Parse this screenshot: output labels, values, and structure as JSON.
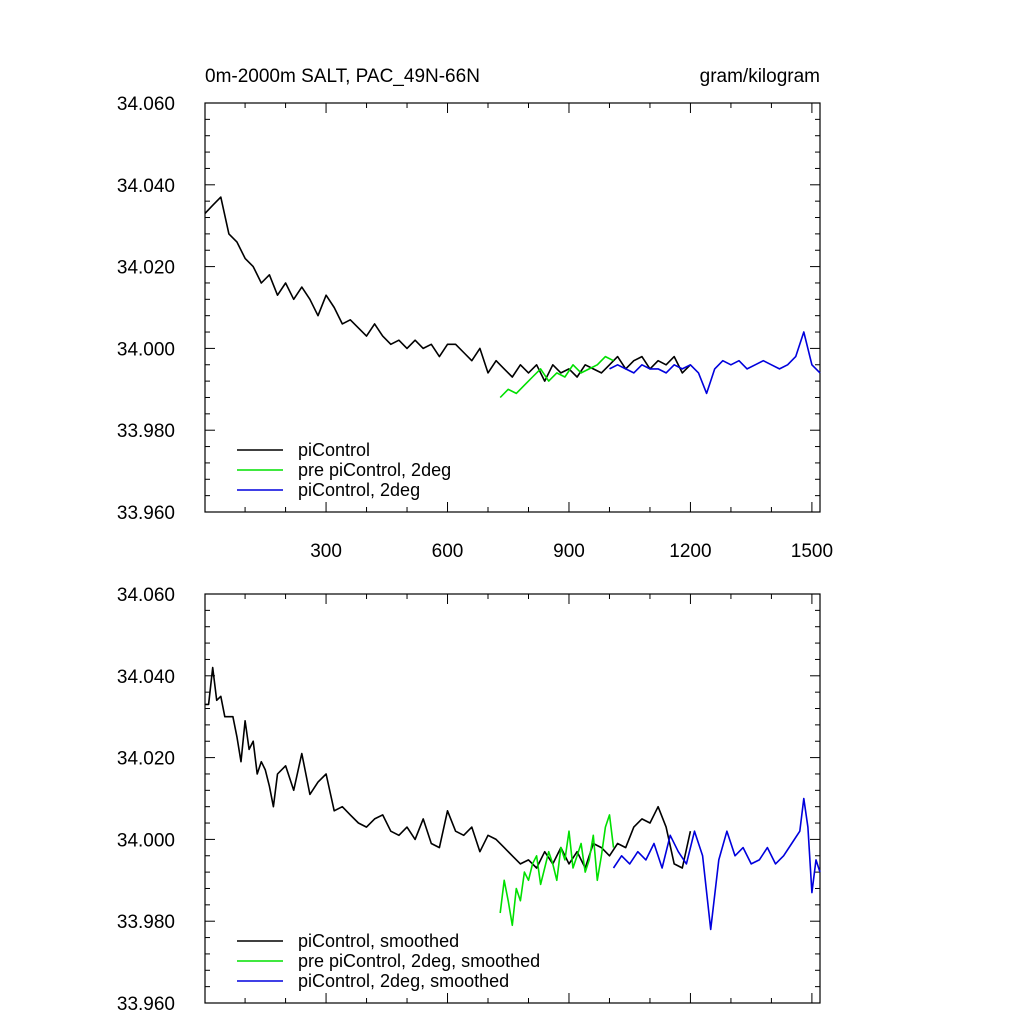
{
  "figure": {
    "title_left": "0m-2000m SALT, PAC_49N-66N",
    "title_right": "gram/kilogram"
  },
  "colors": {
    "piControl": "#000000",
    "pre_piControl_2deg": "#00e000",
    "piControl_2deg": "#0000dd"
  },
  "chart_data": [
    {
      "type": "line",
      "panel": "top",
      "xlim": [
        1,
        1520
      ],
      "ylim": [
        33.96,
        34.06
      ],
      "grid": false,
      "legend_position": "bottom-left",
      "xticks": [
        300,
        600,
        900,
        1200,
        1500
      ],
      "xtick_labels": [
        "300",
        "600",
        "900",
        "1200",
        "1500"
      ],
      "yticks": [
        33.96,
        33.98,
        34.0,
        34.02,
        34.04,
        34.06
      ],
      "ytick_labels": [
        "33.960",
        "33.980",
        "34.000",
        "34.020",
        "34.040",
        "34.060"
      ],
      "series": [
        {
          "name": "piControl",
          "color": "#000000",
          "x": [
            1,
            20,
            40,
            60,
            80,
            100,
            120,
            140,
            160,
            180,
            200,
            220,
            240,
            260,
            280,
            300,
            320,
            340,
            360,
            380,
            400,
            420,
            440,
            460,
            480,
            500,
            520,
            540,
            560,
            580,
            600,
            620,
            640,
            660,
            680,
            700,
            720,
            740,
            760,
            780,
            800,
            820,
            840,
            860,
            880,
            900,
            920,
            940,
            960,
            980,
            1000,
            1020,
            1040,
            1060,
            1080,
            1100,
            1120,
            1140,
            1160,
            1180,
            1200
          ],
          "y": [
            34.033,
            34.035,
            34.037,
            34.028,
            34.026,
            34.022,
            34.02,
            34.016,
            34.018,
            34.013,
            34.016,
            34.012,
            34.015,
            34.012,
            34.008,
            34.013,
            34.01,
            34.006,
            34.007,
            34.005,
            34.003,
            34.006,
            34.003,
            34.001,
            34.002,
            34.0,
            34.002,
            34.0,
            34.001,
            33.998,
            34.001,
            34.001,
            33.999,
            33.997,
            34.0,
            33.994,
            33.997,
            33.995,
            33.993,
            33.996,
            33.994,
            33.996,
            33.992,
            33.996,
            33.994,
            33.995,
            33.993,
            33.996,
            33.995,
            33.994,
            33.996,
            33.998,
            33.995,
            33.997,
            33.998,
            33.995,
            33.997,
            33.996,
            33.998,
            33.994,
            33.996
          ]
        },
        {
          "name": "pre piControl, 2deg",
          "color": "#00e000",
          "x": [
            730,
            750,
            770,
            790,
            810,
            830,
            850,
            870,
            890,
            910,
            930,
            950,
            970,
            990,
            1010
          ],
          "y": [
            33.988,
            33.99,
            33.989,
            33.991,
            33.993,
            33.995,
            33.992,
            33.994,
            33.993,
            33.996,
            33.994,
            33.995,
            33.996,
            33.998,
            33.997
          ]
        },
        {
          "name": "piControl, 2deg",
          "color": "#0000dd",
          "x": [
            1000,
            1020,
            1040,
            1060,
            1080,
            1100,
            1120,
            1140,
            1160,
            1180,
            1200,
            1220,
            1240,
            1260,
            1280,
            1300,
            1320,
            1340,
            1360,
            1380,
            1400,
            1420,
            1440,
            1460,
            1480,
            1500,
            1520
          ],
          "y": [
            33.995,
            33.996,
            33.995,
            33.994,
            33.996,
            33.995,
            33.995,
            33.994,
            33.996,
            33.995,
            33.996,
            33.994,
            33.989,
            33.995,
            33.997,
            33.996,
            33.997,
            33.995,
            33.996,
            33.997,
            33.996,
            33.995,
            33.996,
            33.998,
            34.004,
            33.996,
            33.994
          ]
        }
      ]
    },
    {
      "type": "line",
      "panel": "bottom",
      "xlim": [
        1,
        1520
      ],
      "ylim": [
        33.96,
        34.06
      ],
      "grid": false,
      "legend_position": "bottom-left",
      "xticks": [
        300,
        600,
        900,
        1200,
        1500
      ],
      "xtick_labels": [],
      "yticks": [
        33.96,
        33.98,
        34.0,
        34.02,
        34.04,
        34.06
      ],
      "ytick_labels": [
        "33.960",
        "33.980",
        "34.000",
        "34.020",
        "34.040",
        "34.060"
      ],
      "series": [
        {
          "name": "piControl, smoothed",
          "color": "#000000",
          "x": [
            1,
            10,
            20,
            30,
            40,
            50,
            60,
            70,
            80,
            90,
            100,
            110,
            120,
            130,
            140,
            150,
            160,
            170,
            180,
            200,
            220,
            240,
            260,
            280,
            300,
            320,
            340,
            360,
            380,
            400,
            420,
            440,
            460,
            480,
            500,
            520,
            540,
            560,
            580,
            600,
            620,
            640,
            660,
            680,
            700,
            720,
            740,
            760,
            780,
            800,
            820,
            840,
            860,
            880,
            900,
            920,
            940,
            960,
            980,
            1000,
            1020,
            1040,
            1060,
            1080,
            1100,
            1120,
            1140,
            1160,
            1180,
            1200
          ],
          "y": [
            34.033,
            34.033,
            34.042,
            34.034,
            34.035,
            34.03,
            34.03,
            34.03,
            34.025,
            34.019,
            34.029,
            34.022,
            34.024,
            34.016,
            34.019,
            34.017,
            34.013,
            34.008,
            34.016,
            34.018,
            34.012,
            34.021,
            34.011,
            34.014,
            34.016,
            34.007,
            34.008,
            34.006,
            34.004,
            34.003,
            34.005,
            34.006,
            34.002,
            34.001,
            34.003,
            34.0,
            34.005,
            33.999,
            33.998,
            34.007,
            34.002,
            34.001,
            34.003,
            33.997,
            34.001,
            34.0,
            33.998,
            33.996,
            33.994,
            33.995,
            33.993,
            33.997,
            33.994,
            33.998,
            33.994,
            33.997,
            33.993,
            33.999,
            33.998,
            33.996,
            33.999,
            33.998,
            34.003,
            34.005,
            34.004,
            34.008,
            34.003,
            33.994,
            33.993,
            34.002
          ]
        },
        {
          "name": "pre piControl, 2deg, smoothed",
          "color": "#00e000",
          "x": [
            730,
            740,
            750,
            760,
            770,
            780,
            790,
            800,
            810,
            820,
            830,
            840,
            850,
            860,
            870,
            880,
            890,
            900,
            910,
            920,
            930,
            940,
            950,
            960,
            970,
            980,
            990,
            1000,
            1010
          ],
          "y": [
            33.982,
            33.99,
            33.985,
            33.979,
            33.988,
            33.985,
            33.992,
            33.99,
            33.994,
            33.996,
            33.989,
            33.993,
            33.997,
            33.994,
            33.99,
            33.998,
            33.995,
            34.002,
            33.993,
            33.996,
            33.999,
            33.992,
            33.995,
            34.001,
            33.99,
            33.996,
            34.003,
            34.006,
            33.998
          ]
        },
        {
          "name": "piControl, 2deg, smoothed",
          "color": "#0000dd",
          "x": [
            1010,
            1030,
            1050,
            1070,
            1090,
            1110,
            1130,
            1150,
            1170,
            1190,
            1210,
            1230,
            1250,
            1270,
            1290,
            1310,
            1330,
            1350,
            1370,
            1390,
            1410,
            1430,
            1450,
            1470,
            1480,
            1490,
            1500,
            1510,
            1520
          ],
          "y": [
            33.993,
            33.996,
            33.994,
            33.997,
            33.995,
            33.999,
            33.993,
            34.001,
            33.997,
            33.994,
            34.002,
            33.996,
            33.978,
            33.995,
            34.002,
            33.996,
            33.998,
            33.994,
            33.995,
            33.998,
            33.994,
            33.996,
            33.999,
            34.002,
            34.01,
            34.003,
            33.987,
            33.995,
            33.992
          ]
        }
      ]
    }
  ]
}
